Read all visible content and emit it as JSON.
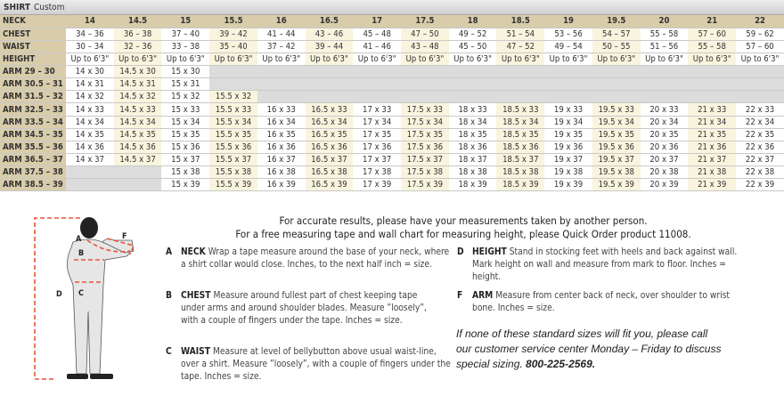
{
  "title": {
    "main": "SHIRT",
    "sub": "Custom"
  },
  "table": {
    "neck_label": "NECK",
    "sizes": [
      "14",
      "14.5",
      "15",
      "15.5",
      "16",
      "16.5",
      "17",
      "17.5",
      "18",
      "18.5",
      "19",
      "19.5",
      "20",
      "21",
      "22"
    ],
    "rows": [
      {
        "label": "CHEST",
        "cells": [
          "34 – 36",
          "36 – 38",
          "37 – 40",
          "39 – 42",
          "41 – 44",
          "43 – 46",
          "45 – 48",
          "47 – 50",
          "49 – 52",
          "51 – 54",
          "53 – 56",
          "54 – 57",
          "55 – 58",
          "57 – 60",
          "59 – 62"
        ]
      },
      {
        "label": "WAIST",
        "cells": [
          "30 – 34",
          "32 – 36",
          "33 – 38",
          "35 – 40",
          "37 – 42",
          "39 – 44",
          "41 – 46",
          "43 – 48",
          "45 – 50",
          "47 – 52",
          "49 – 54",
          "50 – 55",
          "51 – 56",
          "55 – 58",
          "57 – 60"
        ]
      },
      {
        "label": "HEIGHT",
        "cells": [
          "Up to 6'3\"",
          "Up to 6'3\"",
          "Up to 6'3\"",
          "Up to 6'3\"",
          "Up to 6'3\"",
          "Up to 6'3\"",
          "Up to 6'3\"",
          "Up to 6'3\"",
          "Up to 6'3\"",
          "Up to 6'3\"",
          "Up to 6'3\"",
          "Up to 6'3\"",
          "Up to 6'3\"",
          "Up to 6'3\"",
          "Up to 6'3\""
        ]
      },
      {
        "label": "ARM 29 – 30",
        "cells": [
          "14 x 30",
          "14.5 x 30",
          "15 x 30",
          null,
          null,
          null,
          null,
          null,
          null,
          null,
          null,
          null,
          null,
          null,
          null
        ]
      },
      {
        "label": "ARM 30.5 – 31",
        "cells": [
          "14 x 31",
          "14.5 x 31",
          "15 x 31",
          null,
          null,
          null,
          null,
          null,
          null,
          null,
          null,
          null,
          null,
          null,
          null
        ]
      },
      {
        "label": "ARM 31.5 – 32",
        "cells": [
          "14 x 32",
          "14.5 x 32",
          "15 x 32",
          "15.5 x 32",
          null,
          null,
          null,
          null,
          null,
          null,
          null,
          null,
          null,
          null,
          null
        ]
      },
      {
        "label": "ARM 32.5 – 33",
        "cells": [
          "14 x 33",
          "14.5 x 33",
          "15 x 33",
          "15.5 x 33",
          "16 x 33",
          "16.5 x 33",
          "17 x 33",
          "17.5 x 33",
          "18 x 33",
          "18.5 x 33",
          "19 x 33",
          "19.5 x 33",
          "20 x 33",
          "21 x 33",
          "22 x 33"
        ]
      },
      {
        "label": "ARM 33.5 – 34",
        "cells": [
          "14 x 34",
          "14.5 x 34",
          "15 x 34",
          "15.5 x 34",
          "16 x 34",
          "16.5 x 34",
          "17 x 34",
          "17.5 x 34",
          "18 x 34",
          "18.5 x 34",
          "19 x 34",
          "19.5 x 34",
          "20 x 34",
          "21 x 34",
          "22 x 34"
        ]
      },
      {
        "label": "ARM 34.5 – 35",
        "cells": [
          "14 x 35",
          "14.5 x 35",
          "15 x 35",
          "15.5 x 35",
          "16 x 35",
          "16.5 x 35",
          "17 x 35",
          "17.5 x 35",
          "18 x 35",
          "18.5 x 35",
          "19 x 35",
          "19.5 x 35",
          "20 x 35",
          "21 x 35",
          "22 x 35"
        ]
      },
      {
        "label": "ARM 35.5 – 36",
        "cells": [
          "14 x 36",
          "14.5 x 36",
          "15 x 36",
          "15.5 x 36",
          "16 x 36",
          "16.5 x 36",
          "17 x 36",
          "17.5 x 36",
          "18 x 36",
          "18.5 x 36",
          "19 x 36",
          "19.5 x 36",
          "20 x 36",
          "21 x 36",
          "22 x 36"
        ]
      },
      {
        "label": "ARM 36.5 – 37",
        "cells": [
          "14 x 37",
          "14.5 x 37",
          "15 x 37",
          "15.5 x 37",
          "16 x 37",
          "16.5 x 37",
          "17 x 37",
          "17.5 x 37",
          "18 x 37",
          "18.5 x 37",
          "19 x 37",
          "19.5 x 37",
          "20 x 37",
          "21 x 37",
          "22 x 37"
        ]
      },
      {
        "label": "ARM 37.5 – 38",
        "cells": [
          null,
          null,
          "15 x 38",
          "15.5 x 38",
          "16 x 38",
          "16.5 x 38",
          "17 x 38",
          "17.5 x 38",
          "18 x 38",
          "18.5 x 38",
          "19 x 38",
          "19.5 x 38",
          "20 x 38",
          "21 x 38",
          "22 x 38"
        ]
      },
      {
        "label": "ARM 38.5 – 39",
        "cells": [
          null,
          null,
          "15 x 39",
          "15.5 x 39",
          "16 x 39",
          "16.5 x 39",
          "17 x 39",
          "17.5 x 39",
          "18 x 39",
          "18.5 x 39",
          "19 x 39",
          "19.5 x 39",
          "20 x 39",
          "21 x 39",
          "22 x 39"
        ]
      }
    ]
  },
  "figure": {
    "labels": {
      "a": "A",
      "b": "B",
      "c": "C",
      "d": "D",
      "f": "F"
    }
  },
  "instructions": {
    "heading1": "For accurate results, please have your measurements taken by another person.",
    "heading2": "For a free measuring tape and wall chart for measuring height, please Quick Order product 11008.",
    "items": [
      {
        "letter": "A",
        "title": "NECK",
        "text": "Wrap a tape measure around the base of your neck, where a shirt collar would close. Inches, to the next half inch = size."
      },
      {
        "letter": "B",
        "title": "CHEST",
        "text": "Measure around fullest part of chest keeping tape under arms and around shoulder blades. Measure ”loosely”, with a couple of fingers under the tape. Inches = size."
      },
      {
        "letter": "C",
        "title": "WAIST",
        "text": "Measure at level of bellybutton above usual waist-line, over a shirt. Measure ”loosely”, with a couple of fingers under the tape. Inches = size."
      },
      {
        "letter": "D",
        "title": "HEIGHT",
        "text": "Stand in stocking feet with heels and back against wall. Mark height on wall and measure from mark to floor. Inches = height."
      },
      {
        "letter": "F",
        "title": "ARM",
        "text": "Measure from center back of neck, over shoulder to wrist bone. Inches = size."
      }
    ],
    "note": "If none of these standard sizes will fit you, please call our customer service center Monday – Friday to discuss special sizing.",
    "phone": "800-225-2569."
  },
  "colors": {
    "header_tan": "#d8ccaa",
    "cream": "#f8f4de",
    "empty_gray": "#dcdcdc",
    "measure_red": "#e8553a"
  }
}
